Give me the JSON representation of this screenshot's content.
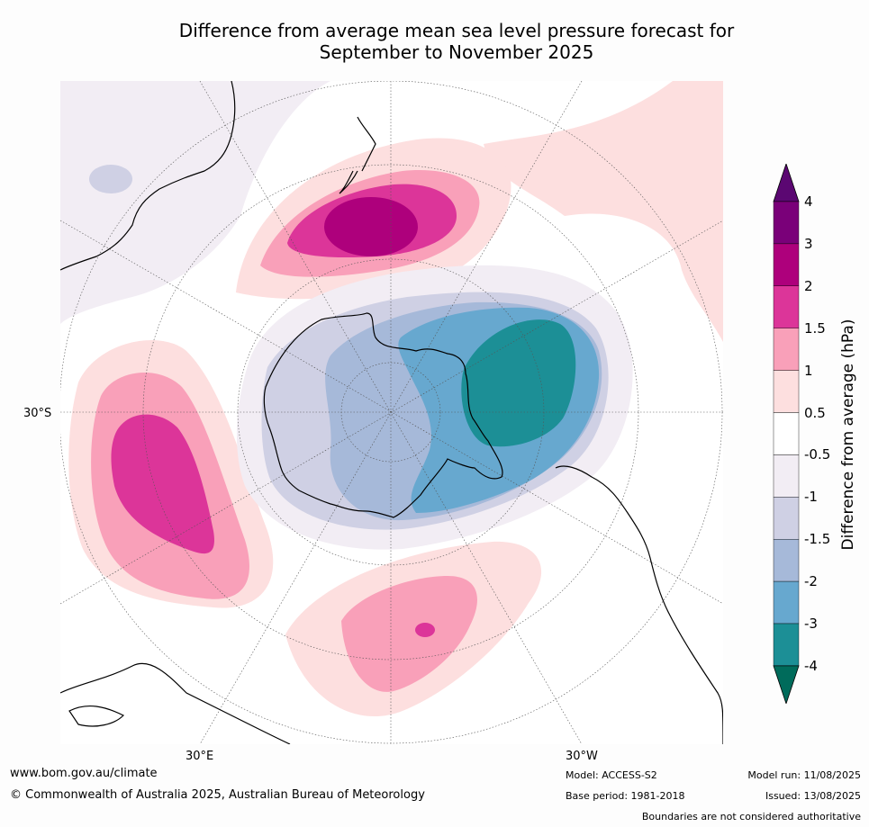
{
  "title": {
    "line1": "Difference from average mean sea level pressure forecast for",
    "line2": "September to November 2025"
  },
  "map": {
    "projection": "south-polar-stereographic",
    "labels": {
      "lat": "30°S",
      "lon_east": "30°E",
      "lon_west": "30°W"
    },
    "palette": {
      "pos_4": "#5b0772",
      "pos_3_4": "#7a0079",
      "pos_2_3": "#ae007c",
      "pos_1_5_2": "#dc3599",
      "pos_1_1_5": "#f9a0b9",
      "pos_0_5_1": "#fddfdf",
      "neutral": "#ffffff",
      "neg_0_5_1": "#f2edf4",
      "neg_1_1_5": "#cfd0e4",
      "neg_1_5_2": "#a6b9d9",
      "neg_2_3": "#67a8cf",
      "neg_3_4": "#1c8f96",
      "neg_4": "#006b5b"
    }
  },
  "colorbar": {
    "title": "Difference from average (hPa)",
    "ticks": [
      "4",
      "3",
      "2",
      "1.5",
      "1",
      "0.5",
      "-0.5",
      "-1",
      "-1.5",
      "-2",
      "-3",
      "-4"
    ],
    "colors": [
      "#7a0079",
      "#ae007c",
      "#dc3599",
      "#f9a0b9",
      "#fddfdf",
      "#ffffff",
      "#f2edf4",
      "#cfd0e4",
      "#a6b9d9",
      "#67a8cf",
      "#1c8f96"
    ],
    "extend_max_color": "#5b0772",
    "extend_min_color": "#006b5b"
  },
  "footer": {
    "url": "www.bom.gov.au/climate",
    "copyright": "© Commonwealth of Australia 2025, Australian Bureau of Meteorology",
    "model": "Model: ACCESS-S2",
    "base_period": "Base period: 1981-2018",
    "model_run": "Model run: 11/08/2025",
    "issued": "Issued: 13/08/2025",
    "disclaimer": "Boundaries are not considered authoritative"
  }
}
